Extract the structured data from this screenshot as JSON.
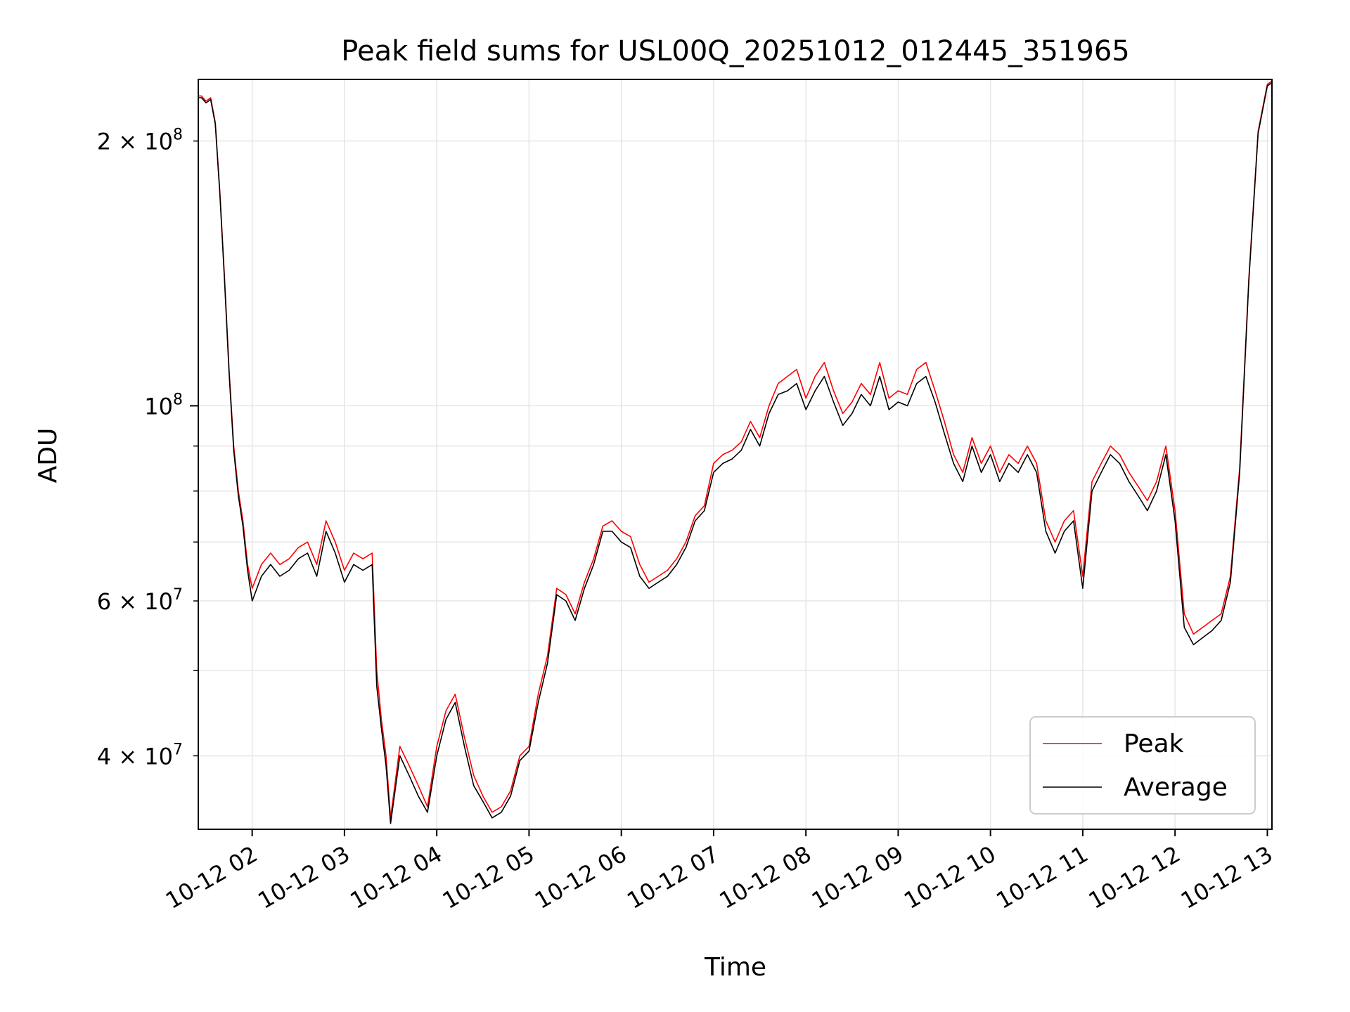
{
  "chart_data": {
    "type": "line",
    "title": "Peak field sums for USL00Q_20251012_012445_351965",
    "xlabel": "Time",
    "ylabel": "ADU",
    "yscale": "log",
    "ylim": [
      33000000,
      235000000
    ],
    "xlim_hours": [
      1.416,
      13.05
    ],
    "grid": true,
    "legend_position": "lower-right",
    "colors": {
      "peak": "#ff0000",
      "average": "#000000",
      "grid": "#e6e6e6",
      "frame": "#000000"
    },
    "x_ticks": [
      {
        "hour": 2,
        "label": "10-12 02"
      },
      {
        "hour": 3,
        "label": "10-12 03"
      },
      {
        "hour": 4,
        "label": "10-12 04"
      },
      {
        "hour": 5,
        "label": "10-12 05"
      },
      {
        "hour": 6,
        "label": "10-12 06"
      },
      {
        "hour": 7,
        "label": "10-12 07"
      },
      {
        "hour": 8,
        "label": "10-12 08"
      },
      {
        "hour": 9,
        "label": "10-12 09"
      },
      {
        "hour": 10,
        "label": "10-12 10"
      },
      {
        "hour": 11,
        "label": "10-12 11"
      },
      {
        "hour": 12,
        "label": "10-12 12"
      },
      {
        "hour": 13,
        "label": "10-12 13"
      }
    ],
    "y_ticks_major": [
      {
        "value": 100000000,
        "mantissa": "10",
        "exp": "8"
      }
    ],
    "y_ticks_minor_labeled": [
      {
        "value": 200000000,
        "mantissa": "2 × 10",
        "exp": "8"
      },
      {
        "value": 60000000,
        "mantissa": "6 × 10",
        "exp": "7"
      },
      {
        "value": 40000000,
        "mantissa": "4 × 10",
        "exp": "7"
      }
    ],
    "y_ticks_minor_unlabeled": [
      50000000,
      70000000,
      80000000,
      90000000
    ],
    "series": [
      {
        "name": "Peak",
        "x_hours": [
          1.42,
          1.45,
          1.5,
          1.55,
          1.6,
          1.65,
          1.7,
          1.75,
          1.8,
          1.85,
          1.9,
          1.95,
          2.0,
          2.1,
          2.2,
          2.3,
          2.4,
          2.5,
          2.6,
          2.7,
          2.8,
          2.9,
          3.0,
          3.1,
          3.2,
          3.3,
          3.35,
          3.4,
          3.45,
          3.5,
          3.6,
          3.7,
          3.8,
          3.9,
          4.0,
          4.1,
          4.2,
          4.3,
          4.4,
          4.5,
          4.6,
          4.7,
          4.8,
          4.9,
          5.0,
          5.1,
          5.2,
          5.3,
          5.4,
          5.5,
          5.6,
          5.7,
          5.8,
          5.9,
          6.0,
          6.1,
          6.2,
          6.3,
          6.4,
          6.5,
          6.6,
          6.7,
          6.8,
          6.9,
          7.0,
          7.1,
          7.2,
          7.3,
          7.4,
          7.5,
          7.6,
          7.7,
          7.8,
          7.9,
          8.0,
          8.1,
          8.2,
          8.3,
          8.4,
          8.5,
          8.6,
          8.7,
          8.8,
          8.9,
          9.0,
          9.1,
          9.2,
          9.3,
          9.4,
          9.5,
          9.6,
          9.7,
          9.8,
          9.9,
          10.0,
          10.1,
          10.2,
          10.3,
          10.4,
          10.5,
          10.6,
          10.7,
          10.8,
          10.9,
          11.0,
          11.1,
          11.2,
          11.3,
          11.4,
          11.5,
          11.6,
          11.7,
          11.8,
          11.9,
          12.0,
          12.1,
          12.2,
          12.3,
          12.4,
          12.5,
          12.6,
          12.7,
          12.8,
          12.9,
          13.0,
          13.05
        ],
        "values": [
          225000000,
          225000000,
          222000000,
          224000000,
          210000000,
          175000000,
          140000000,
          110000000,
          90000000,
          80000000,
          74000000,
          66000000,
          62000000,
          66000000,
          68000000,
          66000000,
          67000000,
          69000000,
          70000000,
          66000000,
          74000000,
          70000000,
          65000000,
          68000000,
          67000000,
          68000000,
          50000000,
          44000000,
          40000000,
          34000000,
          41000000,
          39000000,
          37000000,
          35000000,
          41000000,
          45000000,
          47000000,
          42000000,
          38000000,
          36000000,
          34500000,
          35000000,
          36500000,
          40000000,
          41000000,
          47000000,
          52000000,
          62000000,
          61000000,
          58000000,
          63000000,
          67000000,
          73000000,
          74000000,
          72000000,
          71000000,
          66000000,
          63000000,
          64000000,
          65000000,
          67000000,
          70000000,
          75000000,
          77000000,
          86000000,
          88000000,
          89000000,
          91000000,
          96000000,
          92000000,
          100000000,
          106000000,
          108000000,
          110000000,
          102000000,
          108000000,
          112000000,
          104000000,
          98000000,
          101000000,
          106000000,
          103000000,
          112000000,
          102000000,
          104000000,
          103000000,
          110000000,
          112000000,
          104000000,
          96000000,
          88000000,
          84000000,
          92000000,
          86000000,
          90000000,
          84000000,
          88000000,
          86000000,
          90000000,
          86000000,
          74000000,
          70000000,
          74000000,
          76000000,
          64000000,
          82000000,
          86000000,
          90000000,
          88000000,
          84000000,
          81000000,
          78000000,
          82000000,
          90000000,
          76000000,
          58000000,
          55000000,
          56000000,
          57000000,
          58000000,
          64000000,
          85000000,
          140000000,
          205000000,
          232000000,
          234000000
        ]
      },
      {
        "name": "Average",
        "x_hours": [
          1.42,
          1.45,
          1.5,
          1.55,
          1.6,
          1.65,
          1.7,
          1.75,
          1.8,
          1.85,
          1.9,
          1.95,
          2.0,
          2.1,
          2.2,
          2.3,
          2.4,
          2.5,
          2.6,
          2.7,
          2.8,
          2.9,
          3.0,
          3.1,
          3.2,
          3.3,
          3.35,
          3.4,
          3.45,
          3.5,
          3.6,
          3.7,
          3.8,
          3.9,
          4.0,
          4.1,
          4.2,
          4.3,
          4.4,
          4.5,
          4.6,
          4.7,
          4.8,
          4.9,
          5.0,
          5.1,
          5.2,
          5.3,
          5.4,
          5.5,
          5.6,
          5.7,
          5.8,
          5.9,
          6.0,
          6.1,
          6.2,
          6.3,
          6.4,
          6.5,
          6.6,
          6.7,
          6.8,
          6.9,
          7.0,
          7.1,
          7.2,
          7.3,
          7.4,
          7.5,
          7.6,
          7.7,
          7.8,
          7.9,
          8.0,
          8.1,
          8.2,
          8.3,
          8.4,
          8.5,
          8.6,
          8.7,
          8.8,
          8.9,
          9.0,
          9.1,
          9.2,
          9.3,
          9.4,
          9.5,
          9.6,
          9.7,
          9.8,
          9.9,
          10.0,
          10.1,
          10.2,
          10.3,
          10.4,
          10.5,
          10.6,
          10.7,
          10.8,
          10.9,
          11.0,
          11.1,
          11.2,
          11.3,
          11.4,
          11.5,
          11.6,
          11.7,
          11.8,
          11.9,
          12.0,
          12.1,
          12.2,
          12.3,
          12.4,
          12.5,
          12.6,
          12.7,
          12.8,
          12.9,
          13.0,
          13.05
        ],
        "values": [
          224000000,
          224000000,
          221000000,
          223000000,
          209000000,
          174000000,
          139000000,
          109000000,
          89000000,
          79000000,
          73000000,
          65000000,
          60000000,
          64000000,
          66000000,
          64000000,
          65000000,
          67000000,
          68000000,
          64000000,
          72000000,
          68000000,
          63000000,
          66000000,
          65000000,
          66000000,
          48000000,
          43000000,
          39000000,
          33500000,
          40000000,
          38000000,
          36000000,
          34500000,
          40000000,
          44000000,
          46000000,
          41000000,
          37000000,
          35500000,
          34000000,
          34500000,
          36000000,
          39500000,
          40500000,
          46000000,
          51000000,
          61000000,
          60000000,
          57000000,
          62000000,
          66000000,
          72000000,
          72000000,
          70000000,
          69000000,
          64000000,
          62000000,
          63000000,
          64000000,
          66000000,
          69000000,
          74000000,
          76000000,
          84000000,
          86000000,
          87000000,
          89000000,
          94000000,
          90000000,
          98000000,
          103000000,
          104000000,
          106000000,
          99000000,
          104000000,
          108000000,
          101000000,
          95000000,
          98000000,
          103000000,
          100000000,
          108000000,
          99000000,
          101000000,
          100000000,
          106000000,
          108000000,
          101000000,
          93000000,
          86000000,
          82000000,
          90000000,
          84000000,
          88000000,
          82000000,
          86000000,
          84000000,
          88000000,
          84000000,
          72000000,
          68000000,
          72000000,
          74000000,
          62000000,
          80000000,
          84000000,
          88000000,
          86000000,
          82000000,
          79000000,
          76000000,
          80000000,
          88000000,
          74000000,
          56000000,
          53500000,
          54500000,
          55500000,
          57000000,
          63000000,
          84000000,
          139000000,
          204000000,
          231000000,
          233000000
        ]
      }
    ]
  },
  "legend": {
    "peak_label": "Peak",
    "average_label": "Average"
  }
}
